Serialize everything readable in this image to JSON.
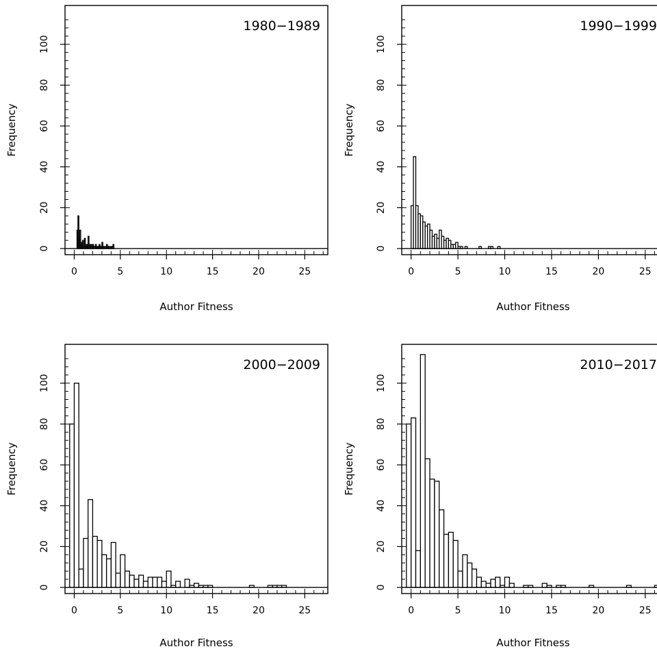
{
  "chart_data": [
    {
      "type": "histogram",
      "title": "",
      "annotation": "1980−1989",
      "xlabel": "Author Fitness",
      "ylabel": "Frequency",
      "xlim": [
        -1,
        27.5
      ],
      "ylim": [
        -3,
        119
      ],
      "xticks": [
        0,
        5,
        10,
        15,
        20,
        25
      ],
      "yticks": [
        0,
        20,
        40,
        60,
        80,
        100
      ],
      "grid": false,
      "bin_width": 0.1,
      "bins": [
        [
          0.3,
          9
        ],
        [
          0.4,
          16
        ],
        [
          0.5,
          5
        ],
        [
          0.6,
          9
        ],
        [
          0.7,
          3
        ],
        [
          0.8,
          2
        ],
        [
          0.9,
          4
        ],
        [
          1.0,
          1
        ],
        [
          1.1,
          5
        ],
        [
          1.2,
          2
        ],
        [
          1.3,
          1
        ],
        [
          1.4,
          2
        ],
        [
          1.5,
          6
        ],
        [
          1.6,
          2
        ],
        [
          1.7,
          1
        ],
        [
          1.8,
          2
        ],
        [
          1.9,
          1
        ],
        [
          2.0,
          2
        ],
        [
          2.1,
          1
        ],
        [
          2.2,
          1
        ],
        [
          2.3,
          2
        ],
        [
          2.4,
          1
        ],
        [
          2.5,
          1
        ],
        [
          2.6,
          1
        ],
        [
          2.7,
          2
        ],
        [
          2.8,
          1
        ],
        [
          2.9,
          1
        ],
        [
          3.0,
          3
        ],
        [
          3.1,
          1
        ],
        [
          3.2,
          1
        ],
        [
          3.3,
          1
        ],
        [
          3.5,
          2
        ],
        [
          3.6,
          1
        ],
        [
          3.7,
          1
        ],
        [
          3.8,
          1
        ],
        [
          4.0,
          1
        ],
        [
          4.1,
          1
        ],
        [
          4.2,
          2
        ]
      ]
    },
    {
      "type": "histogram",
      "title": "",
      "annotation": "1990−1999",
      "xlabel": "Author Fitness",
      "ylabel": "Frequency",
      "xlim": [
        -1,
        27.5
      ],
      "ylim": [
        -3,
        119
      ],
      "xticks": [
        0,
        5,
        10,
        15,
        20,
        25
      ],
      "yticks": [
        0,
        20,
        40,
        60,
        80,
        100
      ],
      "grid": false,
      "bin_width": 0.25,
      "bins": [
        [
          0.0,
          21
        ],
        [
          0.25,
          45
        ],
        [
          0.5,
          21
        ],
        [
          0.75,
          17
        ],
        [
          1.0,
          16
        ],
        [
          1.25,
          13
        ],
        [
          1.5,
          11
        ],
        [
          1.75,
          12
        ],
        [
          2.0,
          9
        ],
        [
          2.25,
          6
        ],
        [
          2.5,
          7
        ],
        [
          2.75,
          5
        ],
        [
          3.0,
          9
        ],
        [
          3.25,
          6
        ],
        [
          3.5,
          4
        ],
        [
          3.75,
          5
        ],
        [
          4.0,
          4
        ],
        [
          4.25,
          2
        ],
        [
          4.5,
          2
        ],
        [
          4.75,
          3
        ],
        [
          5.0,
          1
        ],
        [
          5.25,
          1
        ],
        [
          5.75,
          1
        ],
        [
          7.25,
          1
        ],
        [
          8.25,
          1
        ],
        [
          8.5,
          1
        ],
        [
          9.25,
          1
        ]
      ]
    },
    {
      "type": "histogram",
      "title": "",
      "annotation": "2000−2009",
      "xlabel": "Author Fitness",
      "ylabel": "Frequency",
      "xlim": [
        -1,
        27.5
      ],
      "ylim": [
        -3,
        119
      ],
      "xticks": [
        0,
        5,
        10,
        15,
        20,
        25
      ],
      "yticks": [
        0,
        20,
        40,
        60,
        80,
        100
      ],
      "grid": false,
      "bin_width": 0.5,
      "bins": [
        [
          -0.5,
          80
        ],
        [
          0.0,
          100
        ],
        [
          0.5,
          9
        ],
        [
          1.0,
          24
        ],
        [
          1.5,
          43
        ],
        [
          2.0,
          25
        ],
        [
          2.5,
          23
        ],
        [
          3.0,
          16
        ],
        [
          3.5,
          14
        ],
        [
          4.0,
          22
        ],
        [
          4.5,
          7
        ],
        [
          5.0,
          16
        ],
        [
          5.5,
          8
        ],
        [
          6.0,
          6
        ],
        [
          6.5,
          4
        ],
        [
          7.0,
          6
        ],
        [
          7.5,
          3
        ],
        [
          8.0,
          5
        ],
        [
          8.5,
          5
        ],
        [
          9.0,
          5
        ],
        [
          9.5,
          3
        ],
        [
          10.0,
          8
        ],
        [
          10.5,
          1
        ],
        [
          11.0,
          3
        ],
        [
          11.5,
          0
        ],
        [
          12.0,
          4
        ],
        [
          12.5,
          1
        ],
        [
          13.0,
          2
        ],
        [
          13.5,
          1
        ],
        [
          14.0,
          1
        ],
        [
          14.5,
          1
        ],
        [
          19.0,
          1
        ],
        [
          21.0,
          1
        ],
        [
          21.5,
          1
        ],
        [
          22.0,
          1
        ],
        [
          22.5,
          1
        ]
      ]
    },
    {
      "type": "histogram",
      "title": "",
      "annotation": "2010−2017",
      "xlabel": "Author Fitness",
      "ylabel": "Frequency",
      "xlim": [
        -1,
        27.5
      ],
      "ylim": [
        -3,
        119
      ],
      "xticks": [
        0,
        5,
        10,
        15,
        20,
        25
      ],
      "yticks": [
        0,
        20,
        40,
        60,
        80,
        100
      ],
      "grid": false,
      "bin_width": 0.5,
      "bins": [
        [
          -0.5,
          80
        ],
        [
          0.0,
          83
        ],
        [
          0.5,
          18
        ],
        [
          1.0,
          114
        ],
        [
          1.5,
          63
        ],
        [
          2.0,
          53
        ],
        [
          2.5,
          52
        ],
        [
          3.0,
          38
        ],
        [
          3.5,
          26
        ],
        [
          4.0,
          27
        ],
        [
          4.5,
          23
        ],
        [
          5.0,
          8
        ],
        [
          5.5,
          16
        ],
        [
          6.0,
          12
        ],
        [
          6.5,
          9
        ],
        [
          7.0,
          5
        ],
        [
          7.5,
          3
        ],
        [
          8.0,
          2
        ],
        [
          8.5,
          4
        ],
        [
          9.0,
          5
        ],
        [
          9.5,
          1
        ],
        [
          10.0,
          5
        ],
        [
          10.5,
          2
        ],
        [
          12.0,
          1
        ],
        [
          12.5,
          1
        ],
        [
          14.0,
          2
        ],
        [
          14.5,
          1
        ],
        [
          15.5,
          1
        ],
        [
          16.0,
          1
        ],
        [
          19.0,
          1
        ],
        [
          23.0,
          1
        ],
        [
          26.0,
          1
        ],
        [
          26.5,
          1
        ]
      ]
    }
  ]
}
